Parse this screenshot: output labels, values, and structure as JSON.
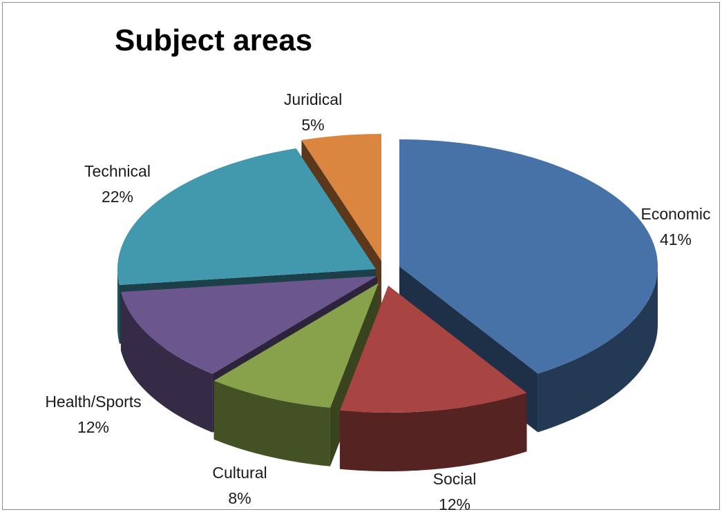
{
  "chart_data": {
    "type": "pie",
    "title": "Subject areas",
    "style": "3d-exploded",
    "slices": [
      {
        "label": "Economic",
        "value": 41,
        "pct_label": "41%",
        "color": "#4672a8"
      },
      {
        "label": "Social",
        "value": 12,
        "pct_label": "12%",
        "color": "#a84543"
      },
      {
        "label": "Cultural",
        "value": 8,
        "pct_label": "8%",
        "color": "#87a24a"
      },
      {
        "label": "Health/Sports",
        "value": 12,
        "pct_label": "12%",
        "color": "#6c568e"
      },
      {
        "label": "Technical",
        "value": 22,
        "pct_label": "22%",
        "color": "#4299ae"
      },
      {
        "label": "Juridical",
        "value": 5,
        "pct_label": "5%",
        "color": "#da8640"
      }
    ]
  }
}
